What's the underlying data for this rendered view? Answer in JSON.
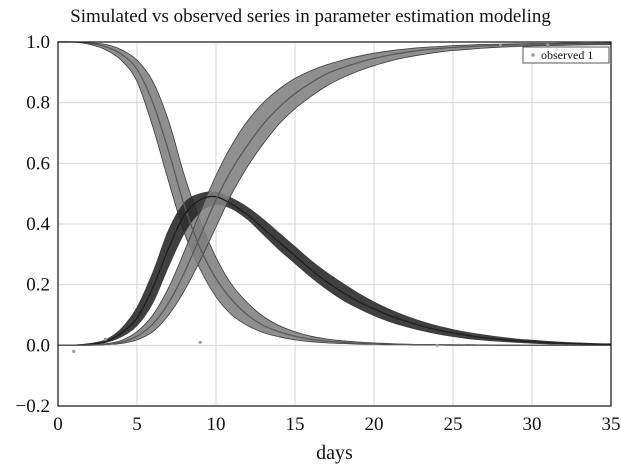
{
  "chart_data": {
    "type": "line",
    "title": "Simulated vs observed series in parameter estimation modeling",
    "xlabel": "days",
    "ylabel": "",
    "xlim": [
      0,
      35
    ],
    "ylim": [
      -0.2,
      1.0
    ],
    "x_ticks": [
      "0",
      "5",
      "10",
      "15",
      "20",
      "25",
      "30",
      "35"
    ],
    "y_ticks": [
      "−0.2",
      "0.0",
      "0.2",
      "0.4",
      "0.6",
      "0.8",
      "1.0"
    ],
    "grid": true,
    "legend": {
      "position": "top-right",
      "entries": [
        "observed 1"
      ]
    },
    "x": [
      0,
      1,
      2,
      3,
      4,
      5,
      6,
      7,
      8,
      9,
      10,
      11,
      12,
      13,
      14,
      15,
      16,
      17,
      18,
      19,
      20,
      21,
      22,
      23,
      24,
      25,
      26,
      27,
      28,
      29,
      30,
      31,
      32,
      33,
      34,
      35
    ],
    "series": [
      {
        "color": "#5a5a5a",
        "band_color": "#808080",
        "values": [
          1.0,
          1.0,
          0.995,
          0.985,
          0.96,
          0.91,
          0.8,
          0.64,
          0.46,
          0.32,
          0.22,
          0.15,
          0.1,
          0.065,
          0.045,
          0.03,
          0.02,
          0.014,
          0.01,
          0.007,
          0.005,
          0.004,
          0.003,
          0.002,
          0.002,
          0.001,
          0.001,
          0.001,
          0.0,
          0.0,
          0.0,
          0.0,
          0.0,
          0.0,
          0.0,
          0.0
        ],
        "lower": [
          1.0,
          1.0,
          0.992,
          0.975,
          0.94,
          0.87,
          0.72,
          0.54,
          0.37,
          0.25,
          0.16,
          0.1,
          0.065,
          0.042,
          0.028,
          0.018,
          0.012,
          0.008,
          0.006,
          0.004,
          0.003,
          0.002,
          0.002,
          0.001,
          0.001,
          0.0,
          0.0,
          0.0,
          0.0,
          0.0,
          0.0,
          0.0,
          0.0,
          0.0,
          0.0,
          0.0
        ],
        "upper": [
          1.0,
          1.0,
          0.997,
          0.992,
          0.975,
          0.94,
          0.87,
          0.74,
          0.56,
          0.41,
          0.29,
          0.2,
          0.14,
          0.095,
          0.065,
          0.045,
          0.03,
          0.021,
          0.015,
          0.011,
          0.008,
          0.006,
          0.004,
          0.003,
          0.003,
          0.002,
          0.002,
          0.001,
          0.001,
          0.001,
          0.0,
          0.0,
          0.0,
          0.0,
          0.0,
          0.0
        ]
      },
      {
        "color": "#1e1e1e",
        "band_color": "#262626",
        "values": [
          0.0,
          0.0,
          0.004,
          0.012,
          0.04,
          0.09,
          0.19,
          0.32,
          0.43,
          0.48,
          0.49,
          0.465,
          0.43,
          0.385,
          0.34,
          0.295,
          0.25,
          0.21,
          0.175,
          0.145,
          0.12,
          0.098,
          0.08,
          0.064,
          0.051,
          0.041,
          0.032,
          0.025,
          0.02,
          0.015,
          0.012,
          0.009,
          0.007,
          0.005,
          0.004,
          0.003
        ],
        "lower": [
          0.0,
          0.0,
          0.003,
          0.009,
          0.028,
          0.065,
          0.14,
          0.26,
          0.37,
          0.44,
          0.465,
          0.45,
          0.415,
          0.365,
          0.315,
          0.27,
          0.225,
          0.185,
          0.15,
          0.122,
          0.098,
          0.078,
          0.062,
          0.049,
          0.038,
          0.029,
          0.022,
          0.017,
          0.013,
          0.01,
          0.007,
          0.005,
          0.004,
          0.003,
          0.002,
          0.002
        ],
        "upper": [
          0.0,
          0.001,
          0.006,
          0.018,
          0.055,
          0.125,
          0.24,
          0.38,
          0.47,
          0.5,
          0.505,
          0.485,
          0.455,
          0.415,
          0.37,
          0.325,
          0.28,
          0.24,
          0.205,
          0.172,
          0.143,
          0.118,
          0.097,
          0.079,
          0.064,
          0.052,
          0.042,
          0.034,
          0.027,
          0.021,
          0.017,
          0.013,
          0.01,
          0.008,
          0.006,
          0.005
        ]
      },
      {
        "color": "#5a5a5a",
        "band_color": "#808080",
        "values": [
          0.0,
          0.0,
          0.001,
          0.003,
          0.01,
          0.03,
          0.07,
          0.14,
          0.24,
          0.36,
          0.48,
          0.58,
          0.66,
          0.73,
          0.785,
          0.83,
          0.865,
          0.895,
          0.915,
          0.932,
          0.946,
          0.957,
          0.966,
          0.973,
          0.978,
          0.982,
          0.985,
          0.987,
          0.989,
          0.99,
          0.991,
          0.992,
          0.993,
          0.993,
          0.994,
          0.994
        ],
        "lower": [
          0.0,
          0.0,
          0.0,
          0.002,
          0.006,
          0.018,
          0.045,
          0.1,
          0.18,
          0.28,
          0.39,
          0.5,
          0.59,
          0.665,
          0.73,
          0.78,
          0.82,
          0.855,
          0.882,
          0.904,
          0.922,
          0.937,
          0.949,
          0.958,
          0.966,
          0.972,
          0.976,
          0.98,
          0.983,
          0.985,
          0.987,
          0.988,
          0.989,
          0.99,
          0.991,
          0.991
        ],
        "upper": [
          0.0,
          0.0,
          0.002,
          0.005,
          0.016,
          0.045,
          0.1,
          0.19,
          0.31,
          0.44,
          0.56,
          0.66,
          0.74,
          0.8,
          0.845,
          0.88,
          0.905,
          0.925,
          0.94,
          0.953,
          0.963,
          0.971,
          0.977,
          0.982,
          0.985,
          0.988,
          0.99,
          0.992,
          0.993,
          0.994,
          0.995,
          0.995,
          0.996,
          0.996,
          0.996,
          0.997
        ]
      }
    ],
    "observed": {
      "name": "observed 1",
      "color": "#9a9a9a",
      "points": [
        [
          1,
          -0.02
        ],
        [
          3,
          0.02
        ],
        [
          9,
          0.01
        ],
        [
          24,
          0.0
        ],
        [
          28,
          0.99
        ],
        [
          31,
          0.99
        ]
      ]
    }
  }
}
